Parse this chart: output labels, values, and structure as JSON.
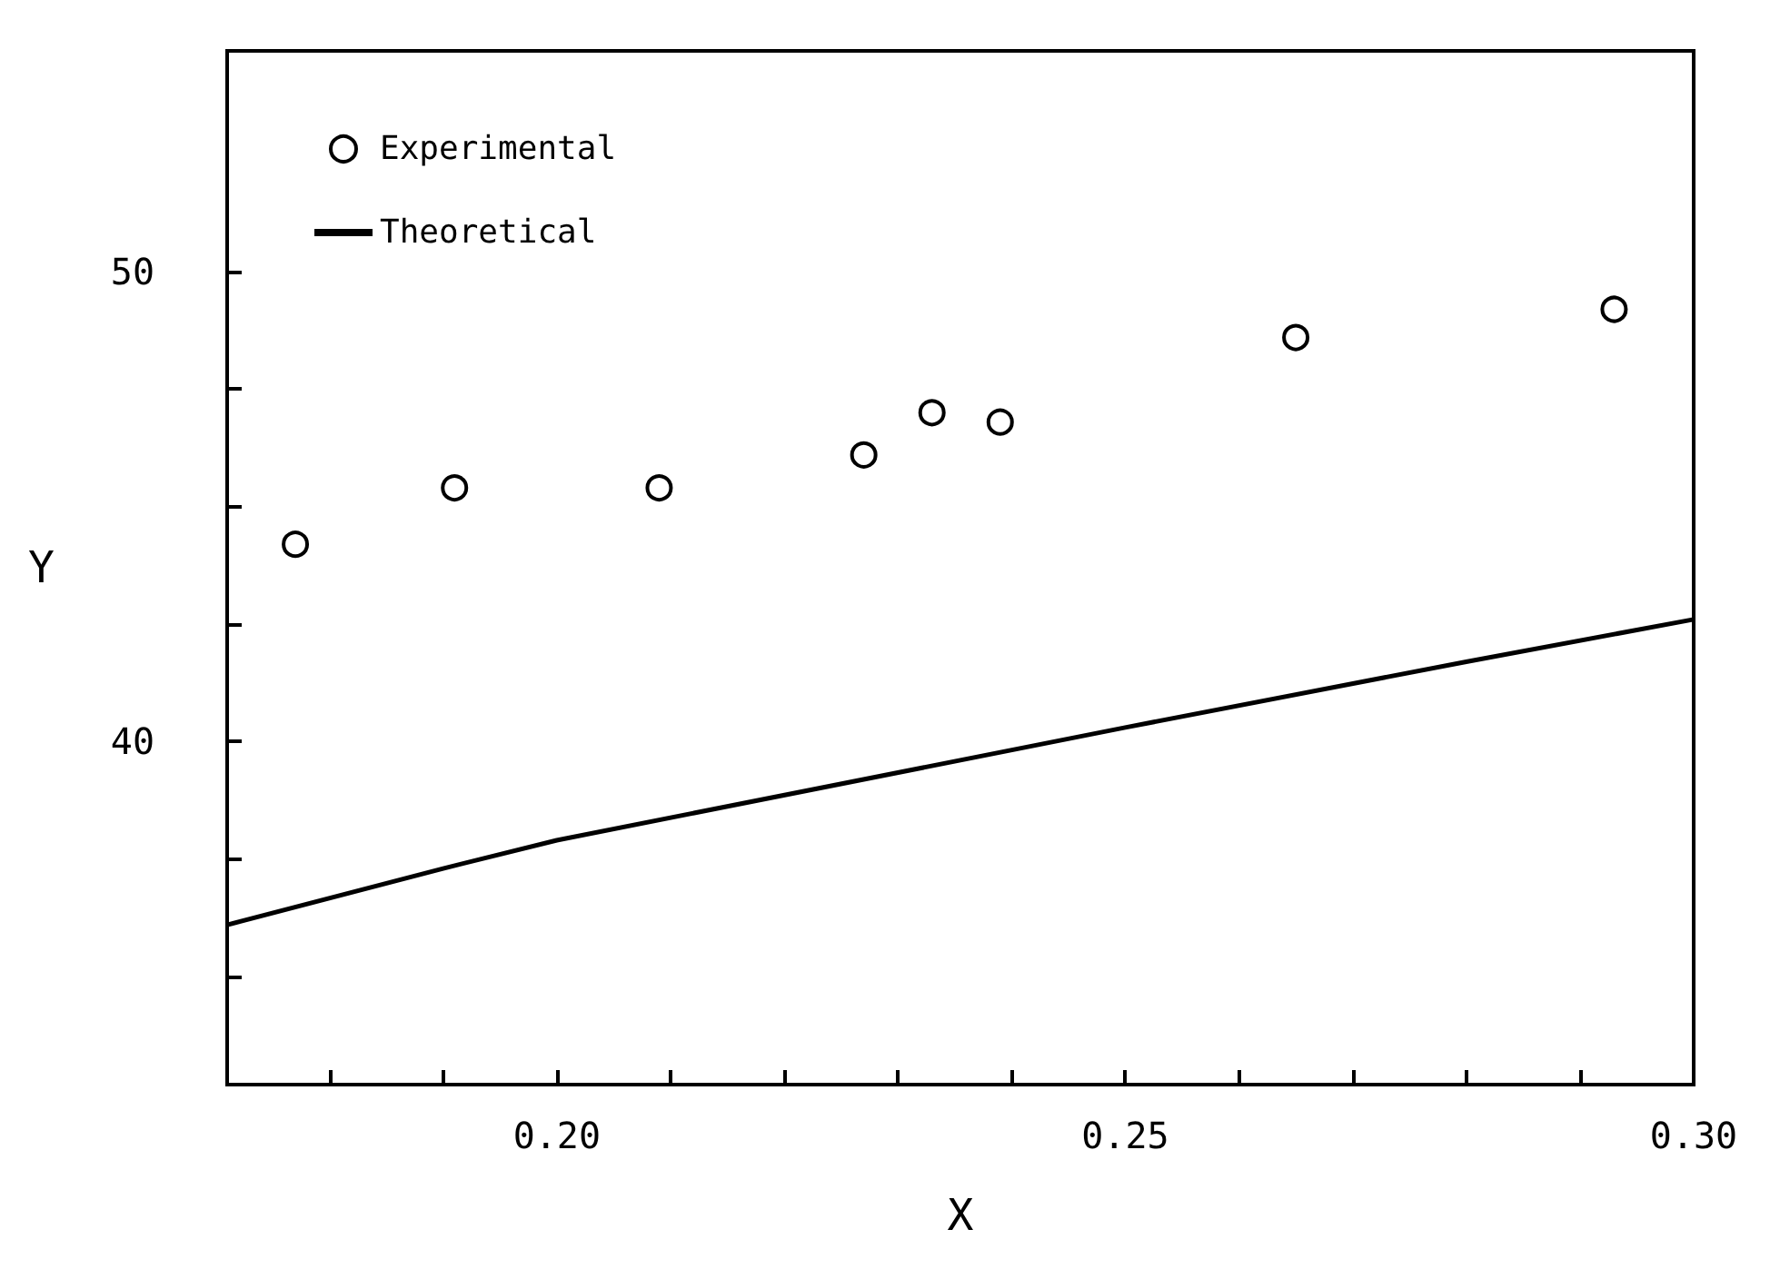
{
  "chart_data": {
    "type": "scatter",
    "xlabel": "X",
    "ylabel": "Y",
    "xlim": [
      0.171,
      0.3
    ],
    "ylim": [
      32.7,
      54.7
    ],
    "xticks": [
      {
        "value": 0.18,
        "label": null
      },
      {
        "value": 0.19,
        "label": null
      },
      {
        "value": 0.2,
        "label": "0.20"
      },
      {
        "value": 0.21,
        "label": null
      },
      {
        "value": 0.22,
        "label": null
      },
      {
        "value": 0.23,
        "label": null
      },
      {
        "value": 0.24,
        "label": null
      },
      {
        "value": 0.25,
        "label": "0.25"
      },
      {
        "value": 0.26,
        "label": null
      },
      {
        "value": 0.27,
        "label": null
      },
      {
        "value": 0.28,
        "label": null
      },
      {
        "value": 0.29,
        "label": null
      },
      {
        "value": 0.3,
        "label": "0.30"
      }
    ],
    "yticks": [
      {
        "value": 35,
        "label": null
      },
      {
        "value": 37.5,
        "label": null
      },
      40,
      {
        "value": 42.5,
        "label": null
      },
      {
        "value": 45,
        "label": null
      },
      {
        "value": 47.5,
        "label": null
      },
      50
    ],
    "legend": "top left",
    "grid": false,
    "series": [
      {
        "name": "Experimental",
        "marker": "circle",
        "color": "#000000",
        "x": [
          0.177,
          0.191,
          0.209,
          0.227,
          0.233,
          0.239,
          0.265,
          0.293
        ],
        "values": [
          44.2,
          45.4,
          45.4,
          46.1,
          47.0,
          46.8,
          48.6,
          49.2
        ]
      },
      {
        "name": "Theoretical",
        "type": "line",
        "marker": "none",
        "line_style": "solid",
        "color": "#000000",
        "x": [
          0.171,
          0.19,
          0.2,
          0.25,
          0.28,
          0.3
        ],
        "values": [
          36.1,
          37.3,
          37.9,
          40.3,
          41.7,
          42.6
        ]
      }
    ]
  }
}
